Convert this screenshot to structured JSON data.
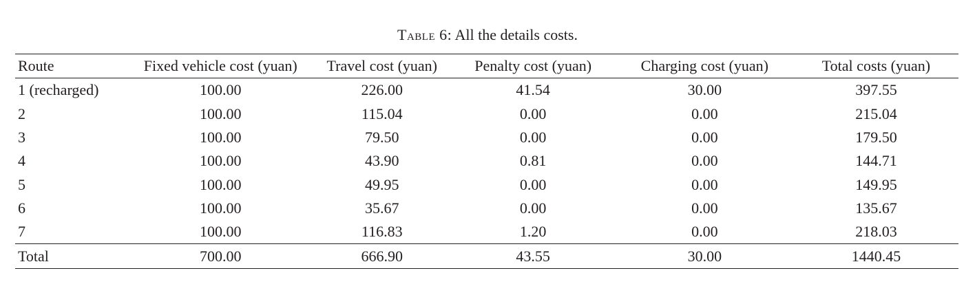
{
  "caption": {
    "label": "Table 6:",
    "text": "All the details costs."
  },
  "table": {
    "headers": {
      "route": "Route",
      "fixed": "Fixed vehicle cost (yuan)",
      "travel": "Travel cost (yuan)",
      "penalty": "Penalty cost (yuan)",
      "charging": "Charging cost (yuan)",
      "total": "Total costs (yuan)"
    },
    "rows": [
      {
        "route": "1 (recharged)",
        "fixed": "100.00",
        "travel": "226.00",
        "penalty": "41.54",
        "charging": "30.00",
        "total": "397.55"
      },
      {
        "route": "2",
        "fixed": "100.00",
        "travel": "115.04",
        "penalty": "0.00",
        "charging": "0.00",
        "total": "215.04"
      },
      {
        "route": "3",
        "fixed": "100.00",
        "travel": "79.50",
        "penalty": "0.00",
        "charging": "0.00",
        "total": "179.50"
      },
      {
        "route": "4",
        "fixed": "100.00",
        "travel": "43.90",
        "penalty": "0.81",
        "charging": "0.00",
        "total": "144.71"
      },
      {
        "route": "5",
        "fixed": "100.00",
        "travel": "49.95",
        "penalty": "0.00",
        "charging": "0.00",
        "total": "149.95"
      },
      {
        "route": "6",
        "fixed": "100.00",
        "travel": "35.67",
        "penalty": "0.00",
        "charging": "0.00",
        "total": "135.67"
      },
      {
        "route": "7",
        "fixed": "100.00",
        "travel": "116.83",
        "penalty": "1.20",
        "charging": "0.00",
        "total": "218.03"
      }
    ],
    "totals": {
      "route": "Total",
      "fixed": "700.00",
      "travel": "666.90",
      "penalty": "43.55",
      "charging": "30.00",
      "total": "1440.45"
    }
  }
}
